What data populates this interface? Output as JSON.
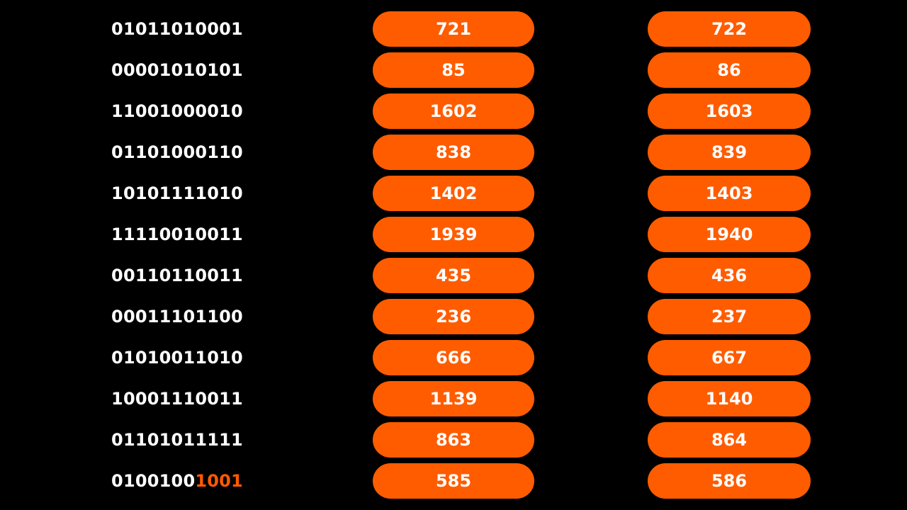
{
  "rows": [
    {
      "binary": "01011010001",
      "binary_highlight": "",
      "value_a": "721",
      "value_b": "722"
    },
    {
      "binary": "00001010101",
      "binary_highlight": "",
      "value_a": "85",
      "value_b": "86"
    },
    {
      "binary": "11001000010",
      "binary_highlight": "",
      "value_a": "1602",
      "value_b": "1603"
    },
    {
      "binary": "01101000110",
      "binary_highlight": "",
      "value_a": "838",
      "value_b": "839"
    },
    {
      "binary": "10101111010",
      "binary_highlight": "",
      "value_a": "1402",
      "value_b": "1403"
    },
    {
      "binary": "11110010011",
      "binary_highlight": "",
      "value_a": "1939",
      "value_b": "1940"
    },
    {
      "binary": "00110110011",
      "binary_highlight": "",
      "value_a": "435",
      "value_b": "436"
    },
    {
      "binary": "00011101100",
      "binary_highlight": "",
      "value_a": "236",
      "value_b": "237"
    },
    {
      "binary": "01010011010",
      "binary_highlight": "",
      "value_a": "666",
      "value_b": "667"
    },
    {
      "binary": "10001110011",
      "binary_highlight": "",
      "value_a": "1139",
      "value_b": "1140"
    },
    {
      "binary": "01101011111",
      "binary_highlight": "",
      "value_a": "863",
      "value_b": "864"
    },
    {
      "binary": "0100100",
      "binary_highlight": "1001",
      "value_a": "585",
      "value_b": "586"
    }
  ],
  "colors": {
    "background": "#000000",
    "pill": "#ff5c00",
    "text": "#ffffff",
    "highlight": "#ff5a00"
  }
}
